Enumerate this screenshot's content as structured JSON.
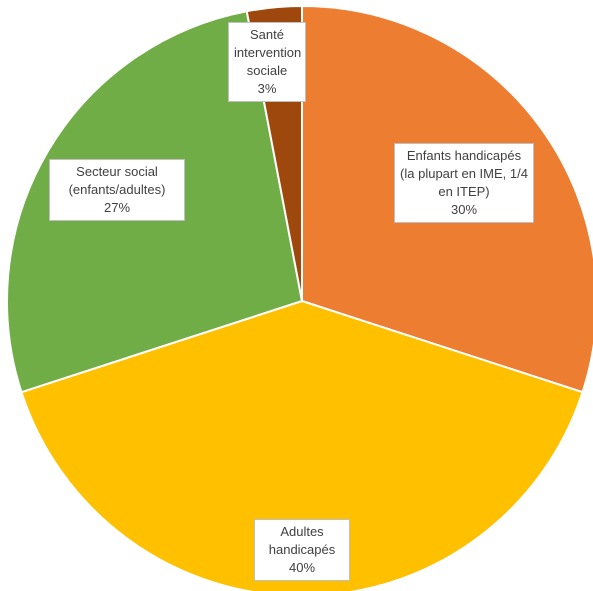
{
  "chart_data": {
    "type": "pie",
    "categories": [
      "Enfants handicapés (la plupart en IME, 1/4 en ITEP)",
      "Adultes handicapés",
      "Secteur social (enfants/adultes)",
      "Santé intervention sociale"
    ],
    "values": [
      30,
      40,
      27,
      3
    ],
    "value_labels": [
      "30%",
      "40%",
      "27%",
      "3%"
    ],
    "colors": [
      "#ed7d31",
      "#ffc000",
      "#70ad47",
      "#9e480e"
    ]
  }
}
